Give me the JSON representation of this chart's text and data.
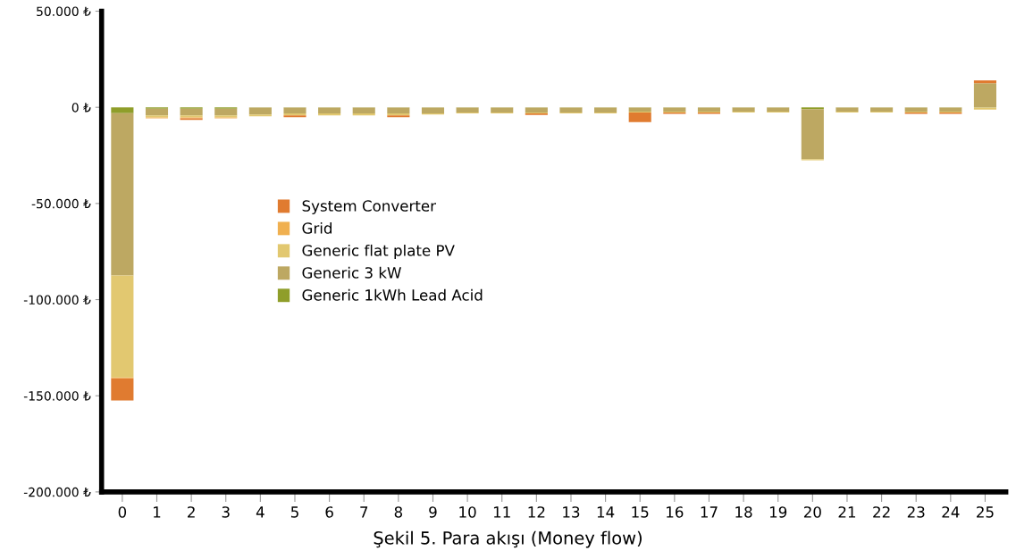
{
  "chart_data": {
    "type": "bar",
    "stacked": true,
    "title": "Şekil 5. Para akışı (Money flow)",
    "categories": [
      "0",
      "1",
      "2",
      "3",
      "4",
      "5",
      "6",
      "7",
      "8",
      "9",
      "10",
      "11",
      "12",
      "13",
      "14",
      "15",
      "16",
      "17",
      "18",
      "19",
      "20",
      "21",
      "22",
      "23",
      "24",
      "25"
    ],
    "series": [
      {
        "name": "Generic 1kWh Lead Acid",
        "color": "#8f9e2a",
        "values": [
          -3000,
          -700,
          -700,
          -700,
          -200,
          -200,
          -200,
          -200,
          -200,
          -200,
          -200,
          -200,
          -200,
          -200,
          -200,
          -200,
          -200,
          -200,
          -200,
          -200,
          -1000,
          -200,
          -200,
          -200,
          -200,
          -200
        ]
      },
      {
        "name": "Generic 3 kW",
        "color": "#bda862",
        "values": [
          -84500,
          -3500,
          -3500,
          -3500,
          -3500,
          -3000,
          -3000,
          -3000,
          -3000,
          -3000,
          -2500,
          -2500,
          -2500,
          -2500,
          -2500,
          -2000,
          -2000,
          -2000,
          -2000,
          -2000,
          -26000,
          -2000,
          -2000,
          -2000,
          -2000,
          12500
        ]
      },
      {
        "name": "Generic flat plate PV",
        "color": "#e2c870",
        "values": [
          -53000,
          -1000,
          -1000,
          -1000,
          -1000,
          -1000,
          -1000,
          -1000,
          -1000,
          -500,
          -500,
          -500,
          -500,
          -500,
          -500,
          -500,
          -500,
          -500,
          -500,
          -500,
          -500,
          -500,
          -500,
          -500,
          -500,
          -1000
        ]
      },
      {
        "name": "Grid",
        "color": "#f0b050",
        "values": [
          -500,
          -500,
          -500,
          -500,
          0,
          0,
          0,
          0,
          0,
          0,
          0,
          0,
          0,
          0,
          0,
          0,
          0,
          0,
          0,
          0,
          0,
          0,
          0,
          0,
          0,
          0
        ]
      },
      {
        "name": "System Converter",
        "color": "#e07b30",
        "values": [
          -11500,
          0,
          -800,
          0,
          0,
          -900,
          0,
          0,
          -900,
          0,
          0,
          0,
          -800,
          0,
          0,
          -5000,
          -700,
          -700,
          0,
          0,
          0,
          0,
          0,
          -700,
          -700,
          1500
        ]
      }
    ],
    "ylim": [
      -200000,
      50000
    ],
    "yticks": [
      {
        "value": 50000,
        "label": "50.000 ₺"
      },
      {
        "value": 0,
        "label": "0 ₺"
      },
      {
        "value": -50000,
        "label": "-50.000 ₺"
      },
      {
        "value": -100000,
        "label": "-100.000 ₺"
      },
      {
        "value": -150000,
        "label": "-150.000 ₺"
      },
      {
        "value": -200000,
        "label": "-200.000 ₺"
      }
    ],
    "grid": false,
    "legend": "center left"
  }
}
